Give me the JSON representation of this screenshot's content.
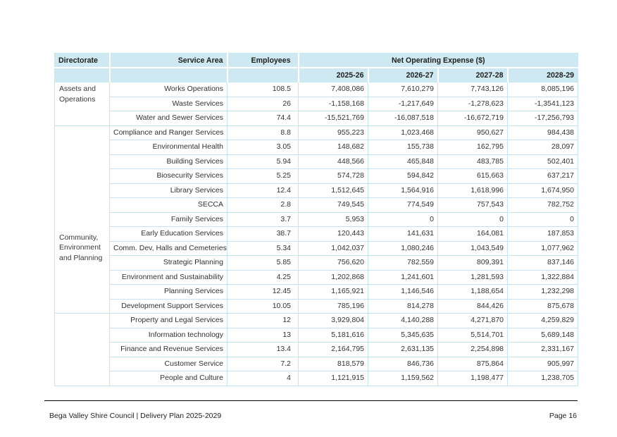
{
  "colors": {
    "header_bg": "#cfe9f2",
    "grid_line": "#c6e5ef",
    "text": "#323232",
    "footer_rule": "#000000"
  },
  "table": {
    "headers": {
      "directorate": "Directorate",
      "service_area": "Service Area",
      "employees": "Employees",
      "net_operating_expense": "Net Operating Expense ($)",
      "years": [
        "2025-26",
        "2026-27",
        "2027-28",
        "2028-29"
      ]
    },
    "groups": [
      {
        "directorate": "Assets and Operations",
        "rows": [
          {
            "service": "Works Operations",
            "employees": "108.5",
            "values": [
              "7,408,086",
              "7,610,279",
              "7,743,126",
              "8,085,196"
            ]
          },
          {
            "service": "Waste Services",
            "employees": "26",
            "values": [
              "-1,158,168",
              "-1,217,649",
              "-1,278,623",
              "-1,3541,123"
            ]
          },
          {
            "service": "Water and Sewer Services",
            "employees": "74.4",
            "values": [
              "-15,521,769",
              "-16,087,518",
              "-16,672,719",
              "-17,256,793"
            ]
          }
        ]
      },
      {
        "directorate": "Community, Environment and Planning",
        "rows": [
          {
            "service": "Compliance and Ranger Services",
            "employees": "8.8",
            "values": [
              "955,223",
              "1,023,468",
              "950,627",
              "984,438"
            ]
          },
          {
            "service": "Environmental Health",
            "employees": "3.05",
            "values": [
              "148,682",
              "155,738",
              "162,795",
              "28,097"
            ]
          },
          {
            "service": "Building Services",
            "employees": "5.94",
            "values": [
              "448,566",
              "465,848",
              "483,785",
              "502,401"
            ]
          },
          {
            "service": "Biosecurity Services",
            "employees": "5.25",
            "values": [
              "574,728",
              "594,842",
              "615,663",
              "637,217"
            ]
          },
          {
            "service": "Library Services",
            "employees": "12.4",
            "values": [
              "1,512,645",
              "1,564,916",
              "1,618,996",
              "1,674,950"
            ]
          },
          {
            "service": "SECCA",
            "employees": "2.8",
            "values": [
              "749,545",
              "774,549",
              "757,543",
              "782,752"
            ]
          },
          {
            "service": "Family Services",
            "employees": "3.7",
            "values": [
              "5,953",
              "0",
              "0",
              "0"
            ]
          },
          {
            "service": "Early Education Services",
            "employees": "38.7",
            "values": [
              "120,443",
              "141,631",
              "164,081",
              "187,853"
            ]
          },
          {
            "service": "Comm. Dev, Halls and Cemeteries",
            "employees": "5.34",
            "values": [
              "1,042,037",
              "1,080,246",
              "1,043,549",
              "1,077,962"
            ]
          },
          {
            "service": "Strategic Planning",
            "employees": "5.85",
            "values": [
              "756,620",
              "782,559",
              "809,391",
              "837,146"
            ]
          },
          {
            "service": "Environment and Sustainability",
            "employees": "4.25",
            "values": [
              "1,202,868",
              "1,241,601",
              "1,281,593",
              "1,322,884"
            ]
          },
          {
            "service": "Planning Services",
            "employees": "12.45",
            "values": [
              "1,165,921",
              "1,146,546",
              "1,188,654",
              "1,232,298"
            ]
          },
          {
            "service": "Development Support Services",
            "employees": "10.05",
            "values": [
              "785,196",
              "814,278",
              "844,426",
              "875,678"
            ]
          }
        ]
      },
      {
        "directorate": "",
        "rows": [
          {
            "service": "Property and Legal Services",
            "employees": "12",
            "values": [
              "3,929,804",
              "4,140,288",
              "4,271,870",
              "4,259,829"
            ]
          },
          {
            "service": "Information technology",
            "employees": "13",
            "values": [
              "5,181,616",
              "5,345,635",
              "5,514,701",
              "5,689,148"
            ]
          },
          {
            "service": "Finance and Revenue Services",
            "employees": "13.4",
            "values": [
              "2,164,795",
              "2,631,135",
              "2,254,898",
              "2,331,167"
            ]
          },
          {
            "service": "Customer Service",
            "employees": "7.2",
            "values": [
              "818,579",
              "846,736",
              "875,864",
              "905,997"
            ]
          },
          {
            "service": "People and Culture",
            "employees": "4",
            "values": [
              "1,121,915",
              "1,159,562",
              "1,198,477",
              "1,238,705"
            ]
          }
        ]
      }
    ]
  },
  "footer": {
    "left": "Bega Valley Shire Council | Delivery Plan 2025-2029",
    "right": "Page 16"
  }
}
